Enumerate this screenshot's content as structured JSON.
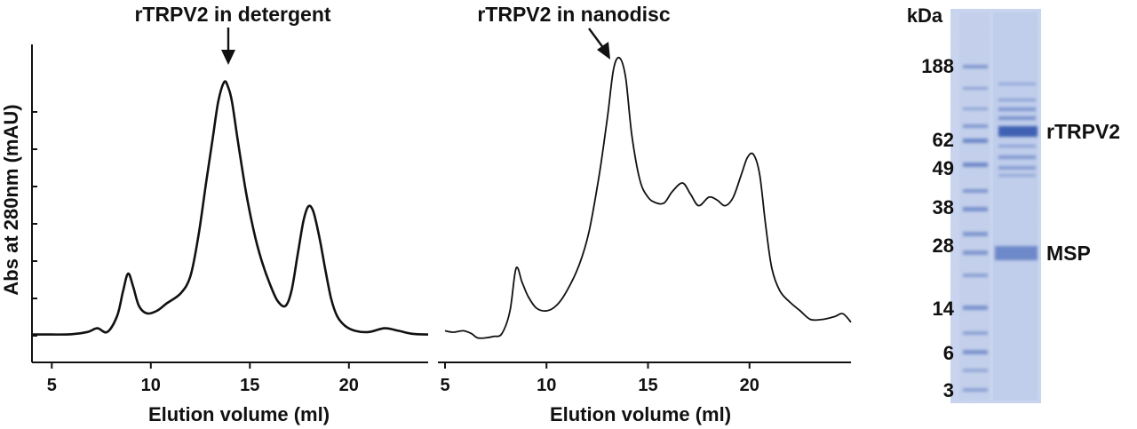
{
  "chart_data": [
    {
      "type": "line",
      "title": "rTRPV2 in detergent",
      "xlabel": "Elution volume (ml)",
      "ylabel": "Abs at 280nm (mAU)",
      "xlim": [
        4,
        24
      ],
      "ylim": [
        0,
        100
      ],
      "xticks": [
        "5",
        "10",
        "15",
        "20"
      ],
      "xtick_values": [
        5,
        10,
        15,
        20
      ],
      "yticks_unlabeled": [
        0,
        15,
        30,
        45,
        60,
        75,
        90
      ],
      "annotation": {
        "text": "rTRPV2 in detergent",
        "x": 13.8,
        "arrow_to_y": 102
      },
      "series": [
        {
          "x": [
            4.0,
            5.0,
            6.0,
            6.8,
            7.3,
            7.8,
            8.3,
            8.6,
            8.85,
            9.1,
            9.4,
            9.8,
            10.3,
            10.8,
            11.5,
            12.0,
            12.4,
            12.8,
            13.1,
            13.4,
            13.7,
            13.9,
            14.1,
            14.4,
            14.8,
            15.2,
            15.6,
            16.0,
            16.4,
            16.8,
            17.1,
            17.4,
            17.7,
            17.95,
            18.2,
            18.5,
            18.8,
            19.1,
            19.4,
            19.8,
            20.3,
            21.0,
            21.8,
            22.5,
            23.2,
            24.0
          ],
          "y": [
            0.5,
            0.5,
            0.6,
            1.5,
            3.0,
            1.5,
            8,
            18,
            25,
            20,
            12,
            9,
            10,
            13,
            17,
            24,
            40,
            62,
            78,
            94,
            102,
            100,
            94,
            78,
            58,
            42,
            30,
            21,
            14,
            12,
            18,
            32,
            46,
            52,
            50,
            40,
            27,
            15,
            8,
            4,
            2,
            1.5,
            3,
            2.0,
            0.8,
            0.5
          ]
        }
      ]
    },
    {
      "type": "line",
      "title": "rTRPV2 in nanodisc",
      "xlabel": "Elution volume (ml)",
      "ylabel": "",
      "xlim": [
        5,
        25
      ],
      "ylim": [
        0,
        100
      ],
      "xticks": [
        "5",
        "10",
        "15",
        "20"
      ],
      "xtick_values": [
        5,
        10,
        15,
        20
      ],
      "annotation": {
        "text": "rTRPV2 in nanodisc",
        "x": 13.6,
        "arrow_to_y": 95
      },
      "series": [
        {
          "x": [
            5.0,
            5.4,
            5.9,
            6.3,
            6.6,
            7.0,
            7.4,
            7.8,
            8.2,
            8.5,
            8.8,
            9.1,
            9.5,
            10.0,
            10.5,
            11.0,
            11.6,
            12.1,
            12.6,
            13.0,
            13.3,
            13.6,
            13.9,
            14.2,
            14.6,
            15.0,
            15.4,
            15.8,
            16.2,
            16.7,
            17.1,
            17.5,
            18.0,
            18.4,
            18.8,
            19.2,
            19.6,
            19.9,
            20.2,
            20.5,
            20.8,
            21.1,
            21.5,
            22.0,
            22.5,
            23.0,
            23.6,
            24.2,
            24.6,
            25.0
          ],
          "y": [
            3,
            2.5,
            3,
            2,
            0.5,
            0.5,
            1,
            2,
            10,
            25,
            20,
            15,
            11,
            10,
            12,
            17,
            26,
            38,
            58,
            78,
            95,
            99,
            92,
            72,
            56,
            50,
            48,
            48,
            52,
            55,
            51,
            47,
            50,
            49,
            47,
            50,
            58,
            64,
            65,
            58,
            40,
            25,
            17,
            13,
            10,
            7,
            7,
            8,
            9,
            6
          ]
        }
      ]
    }
  ],
  "gel": {
    "unit_label": "kDa",
    "markers": [
      "188",
      "62",
      "49",
      "38",
      "28",
      "14",
      "6",
      "3"
    ],
    "bands": [
      "rTRPV2",
      "MSP"
    ]
  }
}
